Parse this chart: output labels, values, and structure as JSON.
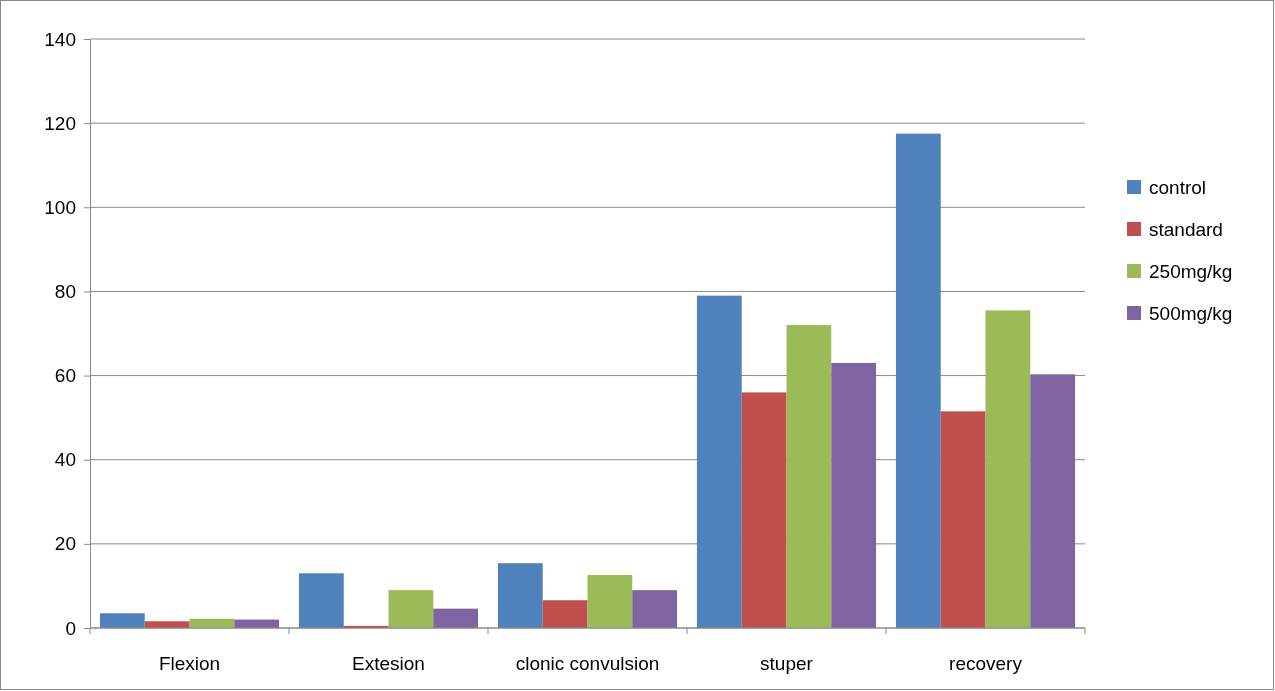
{
  "chart_data": {
    "type": "bar",
    "categories": [
      "Flexion",
      "Extesion",
      "clonic convulsion",
      "stuper",
      "recovery"
    ],
    "series": [
      {
        "name": "control",
        "color": "#4f81bd",
        "values": [
          3.5,
          13,
          15.4,
          79,
          117.5
        ]
      },
      {
        "name": "standard",
        "color": "#c0504d",
        "values": [
          1.6,
          0.5,
          6.6,
          56,
          51.5
        ]
      },
      {
        "name": "250mg/kg",
        "color": "#9bbb59",
        "values": [
          2.2,
          9,
          12.6,
          72,
          75.5
        ]
      },
      {
        "name": "500mg/kg",
        "color": "#8064a2",
        "values": [
          2,
          4.6,
          9,
          63,
          60.3
        ]
      }
    ],
    "ylim": [
      0,
      140
    ],
    "yticks": [
      0,
      20,
      40,
      60,
      80,
      100,
      120,
      140
    ],
    "grid": "y",
    "legend": "right"
  }
}
